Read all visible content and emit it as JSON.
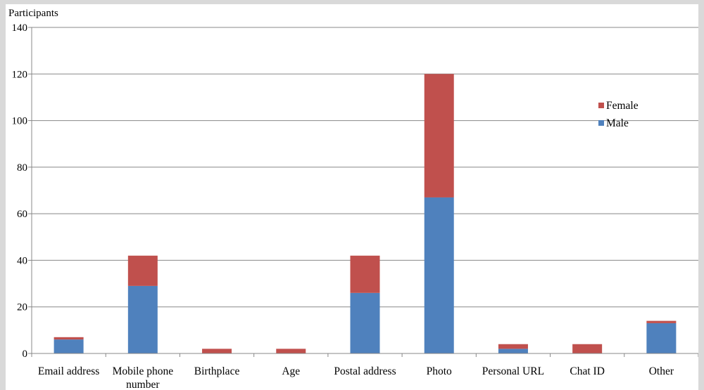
{
  "chart_data": {
    "type": "bar",
    "stacked": true,
    "title": "",
    "ylabel": "Participants",
    "xlabel": "",
    "ylim": [
      0,
      140
    ],
    "yticks": [
      0,
      20,
      40,
      60,
      80,
      100,
      120,
      140
    ],
    "grid": true,
    "legend_position": "right",
    "categories": [
      "Email address",
      [
        "Mobile phone",
        "number"
      ],
      "Birthplace",
      "Age",
      "Postal address",
      "Photo",
      "Personal URL",
      "Chat ID",
      "Other"
    ],
    "series": [
      {
        "name": "Male",
        "color": "#4f81bd",
        "values": [
          6,
          29,
          0,
          0,
          26,
          67,
          2,
          0,
          13
        ]
      },
      {
        "name": "Female",
        "color": "#c0504d",
        "values": [
          1,
          13,
          2,
          2,
          16,
          53,
          2,
          4,
          1
        ]
      }
    ],
    "legend_order": [
      "Female",
      "Male"
    ]
  }
}
